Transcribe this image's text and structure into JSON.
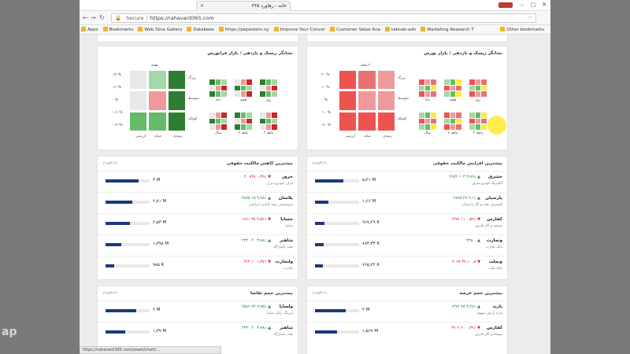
{
  "window": {
    "tab_title": "خانه - رهاورد ۳۶۵",
    "controls": [
      "–",
      "▢",
      "✕"
    ]
  },
  "address": {
    "security": "Secure",
    "url": "https://rahavard365.com"
  },
  "bookmarks": [
    "Apps",
    "Bookmarks",
    "Web Slice Gallery",
    "Database",
    "https://pepestern.ny",
    "Improve Your Conver",
    "Customer Value Ana",
    "tabnak-adv",
    "Marketing Research T"
  ],
  "bookmarks_other": "Other bookmarks",
  "heatmap_left": {
    "title": "نشانگر ریسک و بازدهی / بازار فرابورس",
    "period": "هفته",
    "row_labels": [
      "بزرگ",
      "متوسط",
      "کوچک"
    ],
    "col_labels": [
      "ارزشی",
      "میانه",
      "رشدی"
    ],
    "axis_values": [
      "۰/۲ %",
      "۰/۱ %",
      "۰ %",
      "-۰/۱ %",
      "-۰/۲ %"
    ],
    "mini_labels": [
      "روز",
      "هفته",
      "ماه",
      "۳ ماهه",
      "۶ ماهه",
      "سال"
    ],
    "colors": [
      "#e8e8e8",
      "#a5d6a7",
      "#2e7d32",
      "#e8e8e8",
      "#ef9a9a",
      "#2e7d32",
      "#66bb6a",
      "#66bb6a",
      "#2e7d32"
    ]
  },
  "heatmap_right": {
    "title": "نشانگر ریسک و بازدهی / بازار بورس",
    "period": "۳ ماهه",
    "row_labels": [
      "بزرگ",
      "متوسط",
      "کوچک"
    ],
    "col_labels": [
      "ارزشی",
      "میانه",
      "رشدی"
    ],
    "axis_values": [
      "۲۰ %",
      "۱۰ %",
      "۰ %",
      "-۱۰ %",
      "-۲۰ %"
    ],
    "mini_labels": [
      "روز",
      "هفته",
      "ماه",
      "۳ ماهه",
      "۶ ماهه",
      "سال"
    ],
    "colors": [
      "#ef5350",
      "#e57373",
      "#ef9a9a",
      "#ef5350",
      "#ef9a9a",
      "#ef9a9a",
      "#ef5350",
      "#ef5350",
      "#ef5350"
    ]
  },
  "panel_left": {
    "title": "بیشترین کاهش مالکیت حقوقی",
    "time": "۱۹:۵۳:۲۱",
    "rows": [
      {
        "name": "خزور",
        "desc": "ایران خودرو دیزل",
        "change": "▼ ۰٫۳۹٪ ۸۳۸ ۲۰",
        "dir": "dn",
        "value": "۳ M",
        "fill": 0.75
      },
      {
        "name": "پلاسان",
        "desc": "پتروشیمی بیمه گذاری ایرانیان",
        "change": "▲ ۳٫۹۸٪ ۱۵ ۲۸۷۵",
        "dir": "up",
        "value": "۲٫۸۱ M",
        "fill": 0.6
      },
      {
        "name": "خسانا",
        "desc": "سایپا",
        "change": "▼ ۳٫۵۶٪ ۳۵ ۱۹۶۱",
        "dir": "dn",
        "value": "۲٫۵۳ M",
        "fill": 0.55
      },
      {
        "name": "شاهنر",
        "desc": "نفت پاسارگاد",
        "change": "▲ ۳٫۹۸٪ ۲۰ ۲۳۳۰",
        "dir": "up",
        "value": "۱٫۳۹۸ M",
        "fill": 0.35
      },
      {
        "name": "ولتجارت",
        "desc": "تجارت",
        "change": "▼ ۱٫۳۷٪ ۱۰ ۳۶۳",
        "dir": "dn",
        "value": "۹۸۵ K",
        "fill": 0.2
      }
    ]
  },
  "panel_right": {
    "title": "بیشترین افزایش مالکیت حقوقی",
    "time": "۱۹:۵۳:۲۱",
    "rows": [
      {
        "name": "خشرق",
        "desc": "الکتریک خودرو شرق",
        "change": "▲ ۳٫۹۹٪ ۱۰۳ ۲۶۵۲",
        "dir": "up",
        "value": "۵٫۲۱ M",
        "fill": 0.65
      },
      {
        "name": "پارسیان",
        "desc": "گسترش نفت و گاز پارسیان",
        "change": "▲ ۲٫۱٪ ۲۷ ۲۸۷۵",
        "dir": "up",
        "value": "۱٫۶۶ M",
        "fill": 0.3
      },
      {
        "name": "کفارس",
        "desc": "شیشه و گاز فارس",
        "change": "▼ ۰٫۵۹٪ ۱۱ ۱۳۷۹",
        "dir": "dn",
        "value": "۹۶۷٫۲۹ K",
        "fill": 0.22
      },
      {
        "name": "وتجارت",
        "desc": "بانک تجارت",
        "change": "▲ ۰ ۳۳۸",
        "dir": "up",
        "value": "۸۷۳٫۳۳ K",
        "fill": 0.2
      },
      {
        "name": "وبملت",
        "desc": "بانک ملت",
        "change": "▼ ۰٫۸ ٪ ۳۹ ۲۰۹۷",
        "dir": "dn",
        "value": "۷۶۵٫۲۲ K",
        "fill": 0.18
      }
    ]
  },
  "panel_left2": {
    "title": "بیشترین حجم تقاضا",
    "time": "۱۹:۵۳:۲۱",
    "rows": [
      {
        "name": "ولساپا",
        "desc": "لیزینگ رایان سایپا",
        "change": "▲ ۳٫۹۵٪ ۷۳ ۲۵۸۹",
        "dir": "up",
        "value": "۲ M",
        "fill": 0.7
      },
      {
        "name": "شاهنر",
        "desc": "نفت پاسارگاد",
        "change": "▲ ۳٫۹۸٪ ۲۰ ۲۳۳۰",
        "dir": "up",
        "value": "۱٫۳۷ M",
        "fill": 0.45
      }
    ]
  },
  "panel_right2": {
    "title": "بیشترین حجم عرضه",
    "time": "۱۹:۵۳:۲۱",
    "rows": [
      {
        "name": "پارند",
        "desc": "پارند پارس دیهوم",
        "change": "▲ ۳٫۴۸٪ ۳۸ ۱۳۷۶",
        "dir": "up",
        "value": "۲ M",
        "fill": 0.7
      },
      {
        "name": "کفارس",
        "desc": "شیشه و گاز فارس",
        "change": "▼ ۰٫۳۹٪ ۲۰ ۳۹۰۹",
        "dir": "dn",
        "value": "۱٫۵۶۷ M",
        "fill": 0.5
      }
    ]
  },
  "status_url": "https://rahavard365.com/asset/chart/...",
  "watermark": "ap"
}
